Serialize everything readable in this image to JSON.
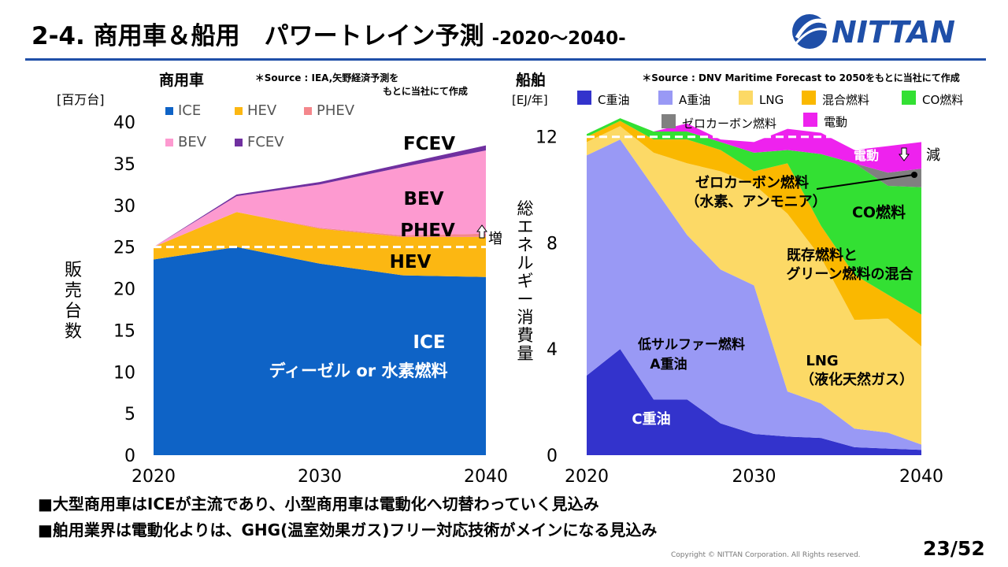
{
  "slide": {
    "title": "2-4. 商用車＆船用　パワートレイン予測",
    "subtitle": "-2020～2040-",
    "logo_text": "NITTAN",
    "copyright": "Copyright © NITTAN Corporation. All Rights reserved.",
    "page": "23/52",
    "bullets": [
      "■大型商用車はICEが主流であり、小型商用車は電動化へ切替わっていく見込み",
      "■舶用業界は電動化よりは、GHG(温室効果ガス)フリー対応技術がメインになる見込み"
    ],
    "colors": {
      "brand": "#1f4fa8",
      "logo": "#1f4fa8"
    }
  },
  "chart_data": [
    {
      "type": "area",
      "stacked": true,
      "title": "商用車",
      "unit": "[百万台]",
      "ylabel": "販売台数",
      "source": [
        "＊Source : IEA,矢野経済予測を",
        "もとに当社にて作成"
      ],
      "x": [
        2020,
        2025,
        2030,
        2035,
        2040
      ],
      "xticks": [
        2020,
        2030,
        2040
      ],
      "yticks": [
        0,
        5,
        10,
        15,
        20,
        25,
        30,
        35,
        40
      ],
      "ylim": [
        0,
        40
      ],
      "legend_position": "top-left",
      "series": [
        {
          "name": "ICE",
          "color": "#0e63c6",
          "values": [
            23.5,
            25.0,
            23.0,
            21.6,
            21.4
          ]
        },
        {
          "name": "HEV",
          "color": "#fcb712",
          "values": [
            1.5,
            4.2,
            4.2,
            4.6,
            4.8
          ]
        },
        {
          "name": "PHEV",
          "color": "#f4878c",
          "values": [
            0.0,
            0.0,
            0.1,
            0.2,
            0.4
          ]
        },
        {
          "name": "BEV",
          "color": "#fd9ad0",
          "values": [
            0.0,
            1.9,
            5.2,
            8.2,
            10.0
          ]
        },
        {
          "name": "FCEV",
          "color": "#7030a0",
          "values": [
            0.0,
            0.2,
            0.3,
            0.4,
            0.6
          ]
        }
      ],
      "dashed_reference": 25,
      "annotations": {
        "fcev": "FCEV",
        "bev": "BEV",
        "phev": "PHEV",
        "hev": "HEV",
        "ice": "ICE",
        "ice_sub": "ディーゼル or 水素燃料",
        "increase": "増"
      }
    },
    {
      "type": "area",
      "stacked": true,
      "title": "船舶",
      "unit": "[EJ/年]",
      "ylabel": "総エネルギー消費量",
      "source": [
        "＊Source : DNV Maritime Forecast to 2050をもとに当社にて作成"
      ],
      "x": [
        2020,
        2022,
        2024,
        2026,
        2028,
        2030,
        2032,
        2034,
        2036,
        2038,
        2040
      ],
      "xticks": [
        2020,
        2030,
        2040
      ],
      "yticks": [
        0,
        4,
        8,
        12
      ],
      "ylim": [
        0,
        13
      ],
      "legend_position": "top",
      "series": [
        {
          "name": "C重油",
          "color": "#3333cc",
          "values": [
            3.0,
            4.0,
            2.1,
            2.1,
            1.2,
            0.8,
            0.7,
            0.65,
            0.3,
            0.25,
            0.2
          ]
        },
        {
          "name": "A重油",
          "color": "#9999f5",
          "values": [
            8.3,
            7.9,
            8.0,
            6.2,
            5.8,
            5.6,
            1.7,
            1.3,
            0.7,
            0.6,
            0.2
          ]
        },
        {
          "name": "LNG",
          "color": "#fcd966",
          "values": [
            0.5,
            0.5,
            1.3,
            2.7,
            3.7,
            3.8,
            6.7,
            5.5,
            4.1,
            4.3,
            3.7
          ]
        },
        {
          "name": "混合燃料",
          "color": "#fab800",
          "values": [
            0.2,
            0.2,
            0.5,
            0.9,
            0.8,
            0.5,
            1.9,
            1.2,
            1.7,
            0.9,
            1.2
          ]
        },
        {
          "name": "CO燃料",
          "color": "#33e033",
          "values": [
            0.1,
            0.1,
            0.3,
            0.3,
            0.3,
            0.7,
            0.5,
            2.7,
            4.2,
            4.1,
            4.8
          ]
        },
        {
          "name": "ゼロカーボン燃料",
          "color": "#808080",
          "values": [
            0.0,
            0.0,
            0.0,
            0.0,
            0.0,
            0.0,
            0.0,
            0.0,
            0.0,
            0.5,
            0.7
          ]
        },
        {
          "name": "電動",
          "color": "#ee22ee",
          "values": [
            0.0,
            0.0,
            0.0,
            0.3,
            0.1,
            0.4,
            0.8,
            0.8,
            0.5,
            1.0,
            1.0
          ]
        }
      ],
      "dashed_reference": 12,
      "annotations": {
        "electric": "電動",
        "decrease": "減",
        "zero_carbon_1": "ゼロカーボン燃料",
        "zero_carbon_2": "（水素、アンモニア）",
        "co": "CO燃料",
        "mix_1": "既存燃料と",
        "mix_2": "グリーン燃料の混合",
        "low_sulfur_1": "低サルファー燃料",
        "low_sulfur_2": "A重油",
        "lng_1": "LNG",
        "lng_2": "（液化天然ガス）",
        "c_heavy": "C重油"
      }
    }
  ]
}
